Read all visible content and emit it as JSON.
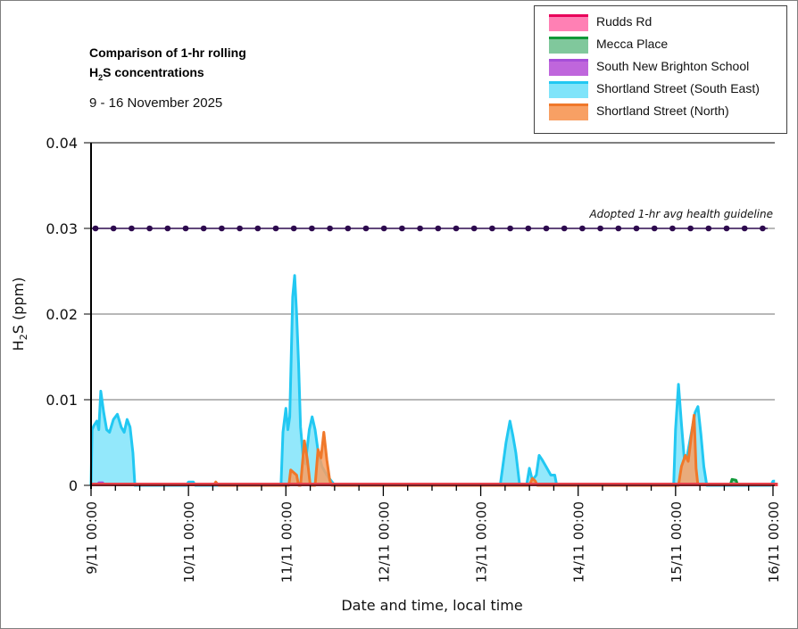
{
  "header": {
    "title_line1": "Comparison of 1-hr rolling",
    "title_line2_pre": "H",
    "title_line2_sub": "2",
    "title_line2_post": "S concentrations",
    "subtitle": "9 - 16 November 2025"
  },
  "legend": {
    "items": [
      {
        "label": "Rudds Rd",
        "line": "#e8005a",
        "fill": "#ff80b4"
      },
      {
        "label": "Mecca Place",
        "line": "#119a3a",
        "fill": "#80c89c"
      },
      {
        "label": "South New Brighton School",
        "line": "#a64ed8",
        "fill": "#bf66dc"
      },
      {
        "label": "Shortland Street (South East)",
        "line": "#22c8f2",
        "fill": "#80e4fa"
      },
      {
        "label": "Shortland Street (North)",
        "line": "#f0782a",
        "fill": "#f8a064"
      }
    ]
  },
  "chart_data": {
    "type": "area",
    "title": "Comparison of 1-hr rolling H2S concentrations",
    "subtitle": "9 - 16 November 2025",
    "xlabel": "Date and time, local time",
    "ylabel_pre": "H",
    "ylabel_sub": "2",
    "ylabel_post": "S (ppm)",
    "x_unit": "days since 9/11 00:00",
    "xlim": [
      0,
      7.05
    ],
    "ylim": [
      0,
      0.04
    ],
    "y_ticks": [
      0,
      0.01,
      0.02,
      0.03,
      0.04
    ],
    "y_tick_labels": [
      "0",
      "0.01",
      "0.02",
      "0.03",
      "0.04"
    ],
    "x_ticks": [
      0,
      1,
      2,
      3,
      4,
      5,
      6,
      7
    ],
    "x_tick_labels": [
      "9/11 00:00",
      "10/11 00:00",
      "11/11 00:00",
      "12/11 00:00",
      "13/11 00:00",
      "14/11 00:00",
      "15/11 00:00",
      "16/11 00:00"
    ],
    "minor_tick_hours": 6,
    "grid": "horizontal",
    "legend_position": "top-right",
    "guideline": {
      "value": 0.03,
      "label": "Adopted 1-hr avg health guideline",
      "color": "#2d0a4e"
    },
    "series": [
      {
        "name": "Shortland Street (South East)",
        "line": "#22c8f2",
        "fill": "#80e4fa",
        "points": [
          [
            0,
            0
          ],
          [
            0.01,
            0.0065
          ],
          [
            0.03,
            0.007
          ],
          [
            0.06,
            0.0075
          ],
          [
            0.08,
            0.0065
          ],
          [
            0.1,
            0.011
          ],
          [
            0.13,
            0.0085
          ],
          [
            0.16,
            0.0065
          ],
          [
            0.19,
            0.0062
          ],
          [
            0.23,
            0.0077
          ],
          [
            0.27,
            0.0083
          ],
          [
            0.31,
            0.0068
          ],
          [
            0.34,
            0.0062
          ],
          [
            0.37,
            0.0077
          ],
          [
            0.4,
            0.0068
          ],
          [
            0.43,
            0.0038
          ],
          [
            0.45,
            0.0
          ],
          [
            0.5,
            0
          ],
          [
            0.98,
            0
          ],
          [
            1.0,
            0.0004
          ],
          [
            1.05,
            0.0004
          ],
          [
            1.07,
            0
          ],
          [
            1.95,
            0
          ],
          [
            1.97,
            0.0062
          ],
          [
            2.0,
            0.009
          ],
          [
            2.02,
            0.0065
          ],
          [
            2.04,
            0.008
          ],
          [
            2.07,
            0.022
          ],
          [
            2.09,
            0.0245
          ],
          [
            2.11,
            0.02
          ],
          [
            2.13,
            0.0142
          ],
          [
            2.15,
            0.0068
          ],
          [
            2.18,
            0.003
          ],
          [
            2.2,
            0.0025
          ],
          [
            2.24,
            0.0065
          ],
          [
            2.27,
            0.008
          ],
          [
            2.3,
            0.0065
          ],
          [
            2.33,
            0.004
          ],
          [
            2.37,
            0.0022
          ],
          [
            2.42,
            0.0012
          ],
          [
            2.48,
            0.0003
          ],
          [
            2.5,
            0
          ],
          [
            4.2,
            0
          ],
          [
            4.26,
            0.005
          ],
          [
            4.3,
            0.0075
          ],
          [
            4.33,
            0.0058
          ],
          [
            4.36,
            0.0038
          ],
          [
            4.4,
            0.0
          ],
          [
            4.47,
            0
          ],
          [
            4.5,
            0.002
          ],
          [
            4.53,
            0.0006
          ],
          [
            4.57,
            0.0012
          ],
          [
            4.6,
            0.0035
          ],
          [
            4.63,
            0.003
          ],
          [
            4.67,
            0.0022
          ],
          [
            4.72,
            0.0012
          ],
          [
            4.76,
            0.0012
          ],
          [
            4.78,
            0
          ],
          [
            5.98,
            0
          ],
          [
            6.0,
            0.0065
          ],
          [
            6.03,
            0.0118
          ],
          [
            6.06,
            0.0072
          ],
          [
            6.09,
            0.003
          ],
          [
            6.12,
            0.0035
          ],
          [
            6.16,
            0.006
          ],
          [
            6.2,
            0.0085
          ],
          [
            6.23,
            0.0092
          ],
          [
            6.26,
            0.006
          ],
          [
            6.29,
            0.0022
          ],
          [
            6.32,
            0
          ],
          [
            6.98,
            0
          ],
          [
            7.0,
            0.0005
          ],
          [
            7.02,
            0.0005
          ]
        ]
      },
      {
        "name": "Shortland Street (North)",
        "line": "#f0782a",
        "fill": "#f8a064",
        "points": [
          [
            1.26,
            0
          ],
          [
            1.28,
            0.0004
          ],
          [
            1.31,
            0
          ],
          [
            2.03,
            0
          ],
          [
            2.05,
            0.0018
          ],
          [
            2.08,
            0.0015
          ],
          [
            2.11,
            0.0012
          ],
          [
            2.13,
            0
          ],
          [
            2.15,
            0
          ],
          [
            2.19,
            0.0052
          ],
          [
            2.22,
            0.003
          ],
          [
            2.25,
            0
          ],
          [
            2.3,
            0
          ],
          [
            2.33,
            0.0042
          ],
          [
            2.36,
            0.0032
          ],
          [
            2.39,
            0.0062
          ],
          [
            2.42,
            0.003
          ],
          [
            2.45,
            0.0006
          ],
          [
            2.47,
            0
          ],
          [
            4.5,
            0
          ],
          [
            4.53,
            0.0008
          ],
          [
            4.56,
            0.0005
          ],
          [
            4.58,
            0
          ],
          [
            6.03,
            0
          ],
          [
            6.06,
            0.0022
          ],
          [
            6.1,
            0.0035
          ],
          [
            6.13,
            0.0028
          ],
          [
            6.17,
            0.0065
          ],
          [
            6.19,
            0.0082
          ],
          [
            6.21,
            0.002
          ],
          [
            6.23,
            0
          ]
        ]
      },
      {
        "name": "Mecca Place",
        "line": "#119a3a",
        "fill": "#80c89c",
        "points": [
          [
            6.56,
            0
          ],
          [
            6.58,
            0.0007
          ],
          [
            6.62,
            0.0006
          ],
          [
            6.64,
            0
          ]
        ]
      },
      {
        "name": "South New Brighton School",
        "line": "#a64ed8",
        "fill": "#bf66dc",
        "points": [
          [
            0.07,
            0
          ],
          [
            0.08,
            0.0003
          ],
          [
            0.12,
            0.0003
          ],
          [
            0.13,
            0
          ]
        ]
      },
      {
        "name": "Rudds Rd",
        "line": "#e8005a",
        "fill": "#ff80b4",
        "points": [
          [
            0,
            0.0001
          ],
          [
            7.05,
            0.0001
          ]
        ]
      }
    ]
  }
}
